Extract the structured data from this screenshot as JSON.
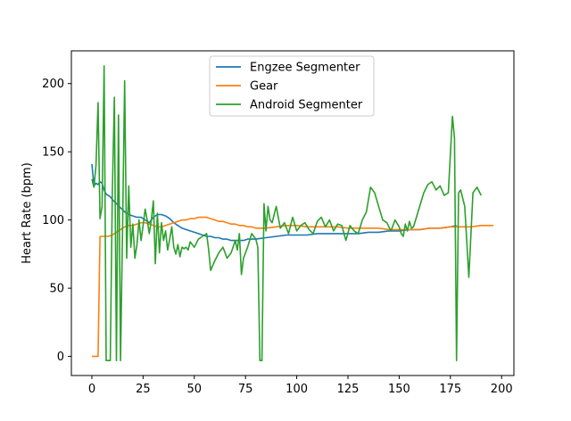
{
  "chart_data": {
    "type": "line",
    "title": "",
    "xlabel": "",
    "ylabel": "Heart Rate (bpm)",
    "xlim": [
      -10,
      206
    ],
    "ylim": [
      -14,
      224
    ],
    "xticks": [
      0,
      25,
      50,
      75,
      100,
      125,
      150,
      175,
      200
    ],
    "yticks": [
      0,
      50,
      100,
      150,
      200
    ],
    "grid": false,
    "legend_position": "top-center",
    "series": [
      {
        "name": "Engzee Segmenter",
        "color": "#1f77b4",
        "x": [
          0,
          1,
          2,
          3,
          4,
          5,
          6,
          7,
          8,
          9,
          10,
          12,
          14,
          16,
          18,
          20,
          22,
          24,
          26,
          28,
          30,
          32,
          34,
          36,
          38,
          40,
          42,
          44,
          46,
          48,
          50,
          52,
          54,
          56,
          58,
          60,
          62,
          64,
          66,
          68,
          70,
          72,
          74,
          76,
          78,
          80,
          85,
          90,
          95,
          100,
          105,
          110,
          115,
          120,
          125,
          130,
          135,
          140,
          145,
          150,
          155,
          160,
          165,
          170,
          175,
          178
        ],
        "y": [
          141,
          125,
          127,
          126,
          128,
          127,
          122,
          119,
          118,
          117,
          115,
          112,
          109,
          106,
          104,
          103,
          102,
          102,
          100,
          98,
          102,
          104,
          104,
          103,
          101,
          98,
          96,
          94,
          93,
          92,
          91,
          90,
          89,
          88,
          88,
          87,
          87,
          86,
          86,
          85,
          85,
          85,
          85,
          86,
          86,
          86,
          87,
          88,
          89,
          89,
          89,
          90,
          90,
          90,
          90,
          90,
          91,
          91,
          92,
          92,
          93,
          93,
          94,
          94,
          95,
          96
        ]
      },
      {
        "name": "Gear",
        "color": "#ff7f0e",
        "x": [
          0,
          2,
          3,
          4,
          5,
          8,
          10,
          12,
          14,
          16,
          18,
          20,
          22,
          24,
          26,
          28,
          30,
          32,
          34,
          36,
          38,
          40,
          42,
          44,
          46,
          48,
          50,
          52,
          54,
          56,
          58,
          60,
          62,
          64,
          66,
          68,
          70,
          72,
          74,
          76,
          78,
          80,
          85,
          90,
          95,
          100,
          105,
          110,
          115,
          120,
          125,
          130,
          135,
          140,
          145,
          150,
          155,
          160,
          165,
          170,
          175,
          180,
          185,
          190,
          196
        ],
        "y": [
          0,
          0,
          0,
          88,
          88,
          88,
          89,
          91,
          93,
          95,
          96,
          96,
          97,
          98,
          98,
          97,
          96,
          95,
          95,
          96,
          97,
          98,
          99,
          100,
          100,
          101,
          101,
          102,
          102,
          102,
          101,
          100,
          99,
          99,
          98,
          97,
          97,
          96,
          96,
          95,
          95,
          94,
          94,
          95,
          96,
          96,
          95,
          95,
          95,
          95,
          94,
          94,
          94,
          94,
          93,
          93,
          93,
          93,
          94,
          94,
          95,
          95,
          95,
          96,
          96
        ]
      },
      {
        "name": "Android Segmenter",
        "color": "#2ca02c",
        "x": [
          0,
          1,
          2,
          3,
          4,
          5,
          6,
          7,
          8,
          9,
          10,
          11,
          12,
          13,
          14,
          15,
          16,
          17,
          18,
          19,
          20,
          21,
          22,
          23,
          24,
          25,
          26,
          27,
          28,
          29,
          30,
          31,
          32,
          33,
          34,
          35,
          36,
          37,
          38,
          39,
          40,
          41,
          42,
          43,
          44,
          45,
          46,
          47,
          48,
          49,
          50,
          52,
          54,
          56,
          57,
          58,
          60,
          62,
          64,
          66,
          68,
          70,
          71,
          72,
          73,
          74,
          76,
          78,
          80,
          81,
          82,
          83,
          84,
          85,
          86,
          87,
          88,
          90,
          92,
          94,
          96,
          98,
          100,
          102,
          104,
          106,
          108,
          110,
          112,
          114,
          116,
          118,
          120,
          122,
          124,
          126,
          128,
          130,
          132,
          134,
          136,
          138,
          140,
          142,
          144,
          146,
          148,
          150,
          151,
          152,
          153,
          154,
          155,
          156,
          157,
          158,
          160,
          162,
          164,
          166,
          168,
          170,
          172,
          174,
          176,
          177,
          178,
          179,
          180,
          182,
          184,
          186,
          188,
          190
        ],
        "y": [
          130,
          124,
          140,
          186,
          101,
          110,
          213,
          -3,
          -3,
          -3,
          120,
          190,
          -3,
          177,
          -3,
          95,
          202,
          72,
          125,
          80,
          97,
          72,
          82,
          100,
          85,
          96,
          108,
          100,
          90,
          100,
          114,
          68,
          105,
          76,
          98,
          85,
          92,
          78,
          86,
          95,
          80,
          75,
          82,
          73,
          80,
          79,
          80,
          78,
          84,
          82,
          80,
          86,
          88,
          90,
          78,
          63,
          70,
          76,
          80,
          72,
          76,
          85,
          78,
          90,
          60,
          72,
          80,
          90,
          86,
          80,
          -3,
          -3,
          112,
          92,
          110,
          100,
          98,
          110,
          94,
          98,
          90,
          102,
          92,
          96,
          98,
          93,
          90,
          99,
          102,
          95,
          100,
          92,
          97,
          96,
          85,
          96,
          92,
          90,
          100,
          106,
          124,
          120,
          110,
          100,
          98,
          92,
          100,
          95,
          90,
          88,
          97,
          92,
          99,
          94,
          95,
          100,
          110,
          120,
          126,
          128,
          122,
          125,
          118,
          120,
          176,
          160,
          -3,
          120,
          122,
          110,
          58,
          120,
          124,
          118
        ]
      }
    ]
  }
}
